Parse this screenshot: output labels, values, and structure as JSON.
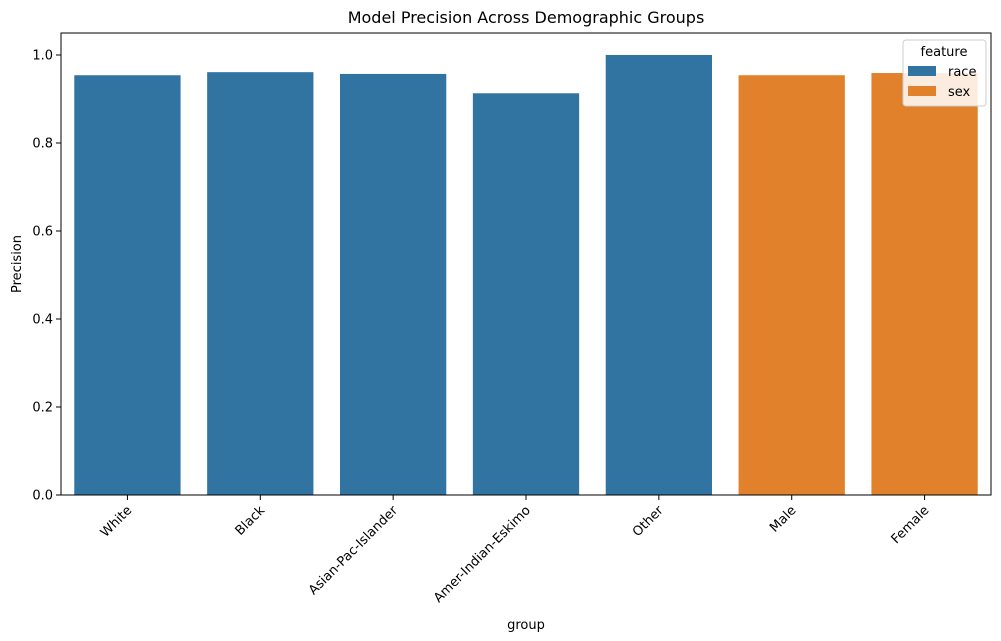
{
  "chart_data": {
    "type": "bar",
    "title": "Model Precision Across Demographic Groups",
    "xlabel": "group",
    "ylabel": "Precision",
    "ylim": [
      0,
      1.05
    ],
    "yticks": [
      0.0,
      0.2,
      0.4,
      0.6,
      0.8,
      1.0
    ],
    "ytick_labels": [
      "0.0",
      "0.2",
      "0.4",
      "0.6",
      "0.8",
      "1.0"
    ],
    "categories": [
      "White",
      "Black",
      "Asian-Pac-Islander",
      "Amer-Indian-Eskimo",
      "Other",
      "Male",
      "Female"
    ],
    "values": [
      0.954,
      0.961,
      0.957,
      0.913,
      1.0,
      0.954,
      0.959
    ],
    "hue": [
      "race",
      "race",
      "race",
      "race",
      "race",
      "sex",
      "sex"
    ],
    "grid": false,
    "legend": {
      "title": "feature",
      "placement": "top-right",
      "entries": [
        {
          "name": "race",
          "color": "#3274a1"
        },
        {
          "name": "sex",
          "color": "#e1812c"
        }
      ]
    }
  }
}
